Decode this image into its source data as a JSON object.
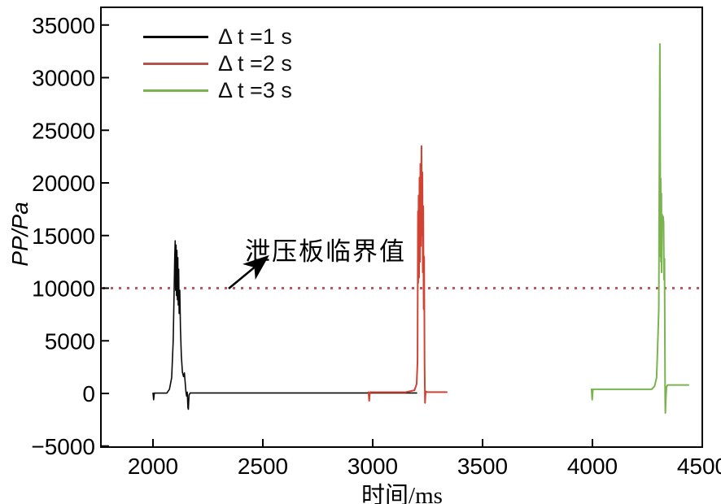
{
  "figure": {
    "background": "#ffffff"
  },
  "chart_data": {
    "type": "line",
    "title": "",
    "xlabel": "时间/ms",
    "ylabel": "PP/Pa",
    "xlim": [
      1766,
      4510
    ],
    "ylim": [
      -5000,
      35000
    ],
    "grid": false,
    "axis_color": "#000000",
    "x_ticks": [
      {
        "value": 2000,
        "label": "2000"
      },
      {
        "value": 2500,
        "label": "2500"
      },
      {
        "value": 3000,
        "label": "3000"
      },
      {
        "value": 3500,
        "label": "3500"
      },
      {
        "value": 4000,
        "label": "4000"
      },
      {
        "value": 4500,
        "label": "4500"
      }
    ],
    "y_ticks": [
      {
        "value": -5000,
        "label": "−5000"
      },
      {
        "value": 0,
        "label": "0"
      },
      {
        "value": 5000,
        "label": "5000"
      },
      {
        "value": 10000,
        "label": "10000"
      },
      {
        "value": 15000,
        "label": "15000"
      },
      {
        "value": 20000,
        "label": "20000"
      },
      {
        "value": 25000,
        "label": "25000"
      },
      {
        "value": 30000,
        "label": "30000"
      },
      {
        "value": 35000,
        "label": "35000"
      }
    ],
    "threshold": {
      "value": 10000,
      "label": "泄压板临界值",
      "color": "#c25563",
      "style": "dotted"
    },
    "legend": {
      "position": "top-left",
      "items": [
        {
          "label": "Δ t =1 s",
          "color": "#000000"
        },
        {
          "label": "Δ t =2 s",
          "color": "#b2544e"
        },
        {
          "label": "Δ t =3 s",
          "color": "#7ab44f"
        }
      ]
    },
    "series": [
      {
        "name": "Δt=1s",
        "color": "#0a0a0a",
        "peak_value": 14500,
        "peak_time_ms": 2101,
        "points": [
          [
            2000,
            30
          ],
          [
            2003,
            -600
          ],
          [
            2006,
            30
          ],
          [
            2063,
            30
          ],
          [
            2075,
            400
          ],
          [
            2085,
            1500
          ],
          [
            2092,
            5000
          ],
          [
            2096,
            9500
          ],
          [
            2099,
            13000
          ],
          [
            2101,
            14500
          ],
          [
            2103,
            9800
          ],
          [
            2105,
            14100
          ],
          [
            2107,
            9300
          ],
          [
            2109,
            13600
          ],
          [
            2111,
            8900
          ],
          [
            2113,
            12900
          ],
          [
            2115,
            8400
          ],
          [
            2117,
            11800
          ],
          [
            2119,
            7600
          ],
          [
            2122,
            9800
          ],
          [
            2125,
            6200
          ],
          [
            2129,
            3600
          ],
          [
            2134,
            2000
          ],
          [
            2139,
            1600
          ],
          [
            2143,
            1950
          ],
          [
            2147,
            900
          ],
          [
            2150,
            150
          ],
          [
            2153,
            -250
          ],
          [
            2156,
            120
          ],
          [
            2159,
            -1350
          ],
          [
            2161,
            -1500
          ],
          [
            2164,
            -150
          ],
          [
            2169,
            40
          ],
          [
            3200,
            40
          ]
        ]
      },
      {
        "name": "Δt=2s",
        "color": "#d14233",
        "peak_value": 23500,
        "peak_time_ms": 3222,
        "points": [
          [
            2981,
            120
          ],
          [
            2984,
            -700
          ],
          [
            2987,
            120
          ],
          [
            3150,
            120
          ],
          [
            3190,
            300
          ],
          [
            3200,
            900
          ],
          [
            3204,
            3000
          ],
          [
            3206,
            17300
          ],
          [
            3207,
            10500
          ],
          [
            3209,
            18800
          ],
          [
            3211,
            11000
          ],
          [
            3213,
            20500
          ],
          [
            3215,
            12500
          ],
          [
            3217,
            21800
          ],
          [
            3219,
            14000
          ],
          [
            3222,
            23500
          ],
          [
            3224,
            15000
          ],
          [
            3226,
            21000
          ],
          [
            3228,
            11500
          ],
          [
            3230,
            17800
          ],
          [
            3232,
            8000
          ],
          [
            3234,
            13000
          ],
          [
            3236,
            3000
          ],
          [
            3238,
            -900
          ],
          [
            3241,
            200
          ],
          [
            3247,
            130
          ],
          [
            3337,
            130
          ]
        ]
      },
      {
        "name": "Δt=3s",
        "color": "#7ab44f",
        "peak_value": 33200,
        "peak_time_ms": 4307,
        "points": [
          [
            3996,
            400
          ],
          [
            3999,
            -600
          ],
          [
            4002,
            400
          ],
          [
            4270,
            400
          ],
          [
            4283,
            700
          ],
          [
            4292,
            1500
          ],
          [
            4297,
            4500
          ],
          [
            4302,
            8000
          ],
          [
            4307,
            33200
          ],
          [
            4309,
            19500
          ],
          [
            4310,
            13000
          ],
          [
            4311,
            20400
          ],
          [
            4312,
            12500
          ],
          [
            4314,
            19000
          ],
          [
            4315,
            11500
          ],
          [
            4317,
            17000
          ],
          [
            4319,
            16500
          ],
          [
            4322,
            16800
          ],
          [
            4324,
            16200
          ],
          [
            4326,
            10800
          ],
          [
            4328,
            12800
          ],
          [
            4330,
            4000
          ],
          [
            4331,
            -500
          ],
          [
            4332,
            -1850
          ],
          [
            4334,
            -600
          ],
          [
            4337,
            600
          ],
          [
            4342,
            800
          ],
          [
            4437,
            800
          ]
        ]
      }
    ]
  }
}
